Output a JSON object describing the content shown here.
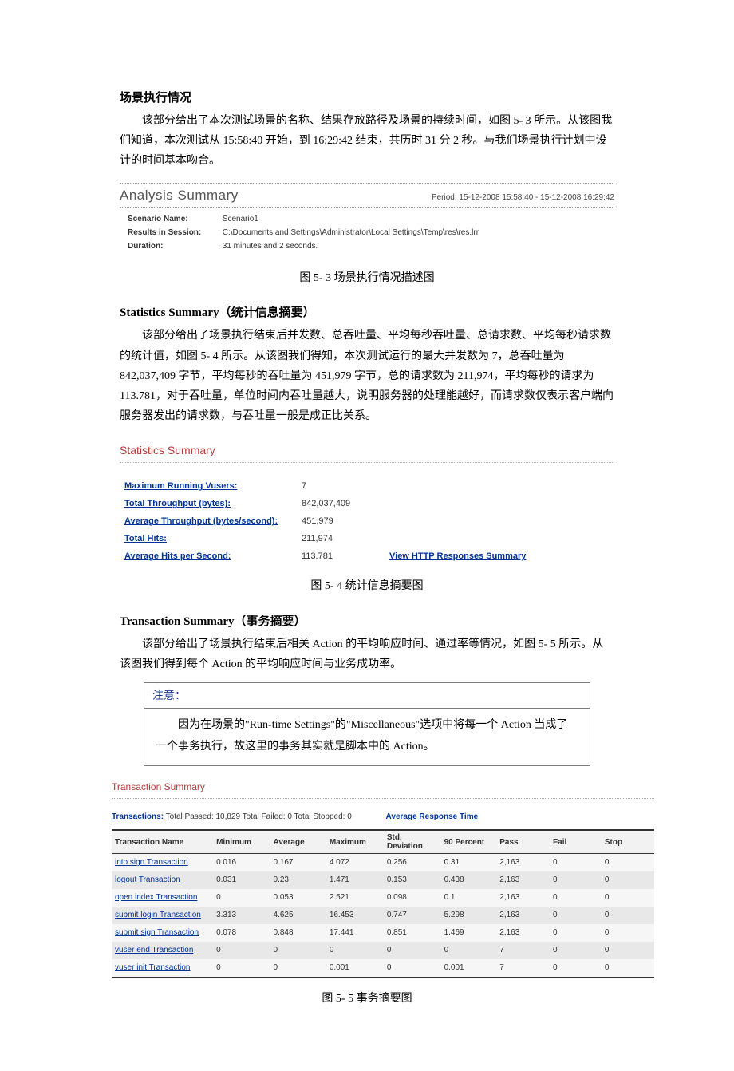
{
  "scene": {
    "heading": "场景执行情况",
    "p1": "该部分给出了本次测试场景的名称、结果存放路径及场景的持续时间，如图 5- 3 所示。从该图我们知道，本次测试从 15:58:40 开始，到 16:29:42 结束，共历时 31 分 2 秒。与我们场景执行计划中设计的时间基本吻合。"
  },
  "analysis": {
    "title": "Analysis Summary",
    "period": "Period: 15-12-2008 15:58:40 - 15-12-2008 16:29:42",
    "scenario_label": "Scenario Name:",
    "scenario_value": "Scenario1",
    "results_label": "Results in Session:",
    "results_value": "C:\\Documents and Settings\\Administrator\\Local Settings\\Temp\\res\\res.lrr",
    "duration_label": "Duration:",
    "duration_value": "31 minutes and 2 seconds.",
    "caption": "图 5- 3 场景执行情况描述图"
  },
  "stats": {
    "heading": "Statistics Summary（统计信息摘要）",
    "p1": "该部分给出了场景执行结束后并发数、总吞吐量、平均每秒吞吐量、总请求数、平均每秒请求数的统计值，如图 5- 4 所示。从该图我们得知，本次测试运行的最大并发数为 7，总吞吐量为 842,037,409 字节，平均每秒的吞吐量为 451,979 字节，总的请求数为 211,974，平均每秒的请求为 113.781，对于吞吐量，单位时间内吞吐量越大，说明服务器的处理能越好，而请求数仅表示客户端向服务器发出的请求数，与吞吐量一般是成正比关系。",
    "panel_title": "Statistics Summary",
    "rows": [
      {
        "label": "Maximum Running Vusers:",
        "value": "7"
      },
      {
        "label": "Total Throughput (bytes):",
        "value": "842,037,409"
      },
      {
        "label": "Average Throughput (bytes/second):",
        "value": "451,979"
      },
      {
        "label": "Total Hits:",
        "value": "211,974"
      },
      {
        "label": "Average Hits per Second:",
        "value": "113.781"
      }
    ],
    "view_link": "View HTTP Responses Summary",
    "caption": "图 5- 4 统计信息摘要图"
  },
  "trans": {
    "heading": "Transaction Summary（事务摘要）",
    "p1": "该部分给出了场景执行结束后相关 Action 的平均响应时间、通过率等情况，如图 5- 5 所示。从该图我们得到每个 Action 的平均响应时间与业务成功率。",
    "note_head": "注意：",
    "note_body": "因为在场景的\"Run-time Settings\"的\"Miscellaneous\"选项中将每一个 Action 当成了一个事务执行，故这里的事务其实就是脚本中的 Action。",
    "panel_title": "Transaction Summary",
    "meta_link": "Transactions:",
    "meta_text": " Total Passed: 10,829 Total Failed: 0 Total Stopped: 0",
    "art_link": "Average Response Time",
    "columns": [
      "Transaction Name",
      "Minimum",
      "Average",
      "Maximum",
      "Std. Deviation",
      "90 Percent",
      "Pass",
      "Fail",
      "Stop"
    ],
    "rows": [
      [
        "into sign Transaction",
        "0.016",
        "0.167",
        "4.072",
        "0.256",
        "0.31",
        "2,163",
        "0",
        "0"
      ],
      [
        "logout Transaction",
        "0.031",
        "0.23",
        "1.471",
        "0.153",
        "0.438",
        "2,163",
        "0",
        "0"
      ],
      [
        "open index Transaction",
        "0",
        "0.053",
        "2.521",
        "0.098",
        "0.1",
        "2,163",
        "0",
        "0"
      ],
      [
        "submit login Transaction",
        "3.313",
        "4.625",
        "16.453",
        "0.747",
        "5.298",
        "2,163",
        "0",
        "0"
      ],
      [
        "submit sign Transaction",
        "0.078",
        "0.848",
        "17.441",
        "0.851",
        "1.469",
        "2,163",
        "0",
        "0"
      ],
      [
        "vuser end Transaction",
        "0",
        "0",
        "0",
        "0",
        "0",
        "7",
        "0",
        "0"
      ],
      [
        "vuser init Transaction",
        "0",
        "0",
        "0.001",
        "0",
        "0.001",
        "7",
        "0",
        "0"
      ]
    ],
    "caption": "图 5- 5 事务摘要图"
  }
}
